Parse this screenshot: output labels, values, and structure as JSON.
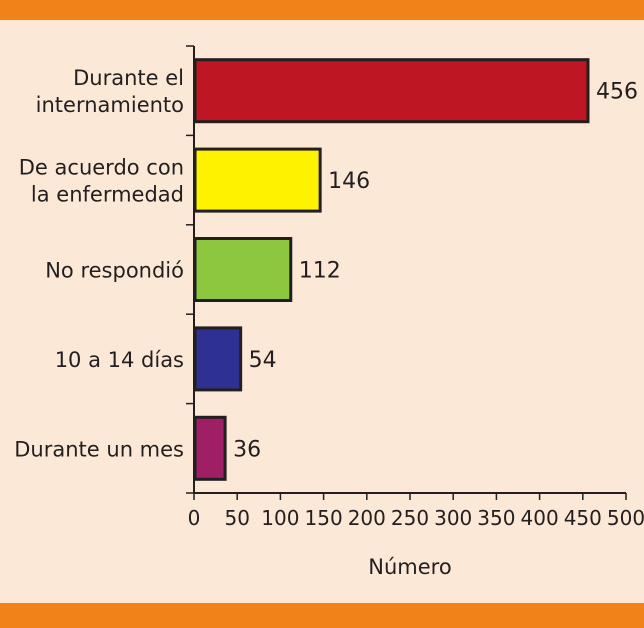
{
  "colors": {
    "background": "#fce8d6",
    "band": "#f08219",
    "axis": "#231f20"
  },
  "chart_data": {
    "type": "bar",
    "orientation": "horizontal",
    "categories": [
      [
        "Durante el",
        "internamiento"
      ],
      [
        "De acuerdo con",
        "la enfermedad"
      ],
      [
        "No respondió"
      ],
      [
        "10 a 14 días"
      ],
      [
        "Durante un mes"
      ]
    ],
    "values": [
      456,
      146,
      112,
      54,
      36
    ],
    "data_labels": [
      "456",
      "146",
      "112",
      "54",
      "36"
    ],
    "bar_colors": [
      "#be1622",
      "#fff200",
      "#8dc63f",
      "#2e3192",
      "#9e1f63"
    ],
    "xlabel": "Número",
    "xlim": [
      0,
      500
    ],
    "xticks": [
      0,
      50,
      100,
      150,
      200,
      250,
      300,
      350,
      400,
      450,
      500
    ],
    "grid": false,
    "legend": "none"
  }
}
